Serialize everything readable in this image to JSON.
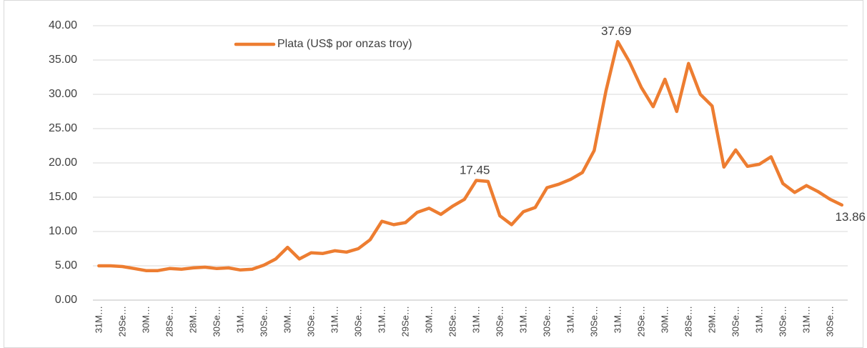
{
  "chart_data": {
    "type": "line",
    "categories": [
      "31M…",
      null,
      "29Se…",
      null,
      "30M…",
      null,
      "28Se…",
      null,
      "28M…",
      null,
      "30Se…",
      null,
      "31M…",
      null,
      "30Se…",
      null,
      "30M…",
      null,
      "30Se…",
      null,
      "31M…",
      null,
      "30Se…",
      null,
      "31M…",
      null,
      "29Se…",
      null,
      "30M…",
      null,
      "28Se…",
      null,
      "31M…",
      null,
      "30Se…",
      null,
      "31M…",
      null,
      "30Se…",
      null,
      "31M…",
      null,
      "30Se…",
      null,
      "31M…",
      null,
      "29Se…",
      null,
      "30M…",
      null,
      "28Se…",
      null,
      "29M…",
      null,
      "30Se…",
      null,
      "31M…",
      null,
      "30Se…",
      null,
      "31M…",
      null,
      "30Se…",
      null
    ],
    "series": [
      {
        "name": "Plata (US$ por onzas troy)",
        "color": "#ed7d31",
        "values": [
          5.0,
          5.0,
          4.9,
          4.6,
          4.3,
          4.3,
          4.6,
          4.5,
          4.7,
          4.8,
          4.6,
          4.7,
          4.4,
          4.5,
          5.1,
          6.0,
          7.7,
          6.0,
          6.9,
          6.8,
          7.2,
          7.0,
          7.5,
          8.8,
          11.5,
          11.0,
          11.3,
          12.8,
          13.4,
          12.5,
          13.7,
          14.7,
          17.45,
          17.3,
          12.3,
          11.0,
          12.9,
          13.5,
          16.4,
          16.9,
          17.6,
          18.6,
          21.8,
          30.5,
          37.69,
          34.7,
          31.0,
          28.2,
          32.2,
          27.5,
          34.5,
          30.0,
          28.3,
          19.4,
          21.9,
          19.5,
          19.8,
          20.9,
          17.0,
          15.7,
          16.7,
          15.8,
          14.7,
          13.86
        ],
        "value_labels": [
          null,
          null,
          null,
          null,
          null,
          null,
          null,
          null,
          null,
          null,
          null,
          null,
          null,
          null,
          null,
          null,
          null,
          null,
          null,
          null,
          null,
          null,
          null,
          null,
          null,
          null,
          null,
          null,
          null,
          null,
          null,
          null,
          "17.45",
          null,
          null,
          null,
          null,
          null,
          null,
          null,
          null,
          null,
          null,
          null,
          "37.69",
          null,
          null,
          null,
          null,
          null,
          null,
          null,
          null,
          null,
          null,
          null,
          null,
          null,
          null,
          null,
          null,
          null,
          null,
          "13.86"
        ]
      }
    ],
    "ylim": [
      0,
      40
    ],
    "yticks": [
      {
        "value": 0,
        "label": "0.00"
      },
      {
        "value": 5,
        "label": "5.00"
      },
      {
        "value": 10,
        "label": "10.00"
      },
      {
        "value": 15,
        "label": "15.00"
      },
      {
        "value": 20,
        "label": "20.00"
      },
      {
        "value": 25,
        "label": "25.00"
      },
      {
        "value": 30,
        "label": "30.00"
      },
      {
        "value": 35,
        "label": "35.00"
      },
      {
        "value": 40,
        "label": "40.00"
      }
    ],
    "grid": true,
    "legend": "top"
  }
}
